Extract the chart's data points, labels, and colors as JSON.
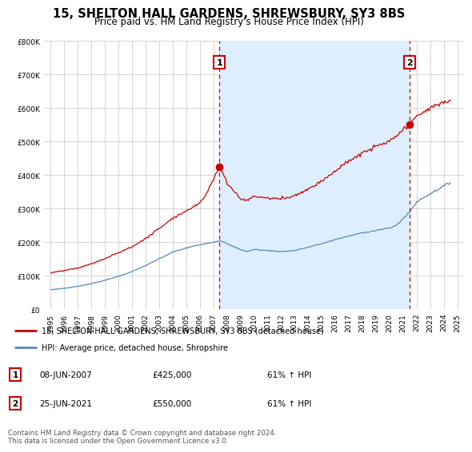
{
  "title": "15, SHELTON HALL GARDENS, SHREWSBURY, SY3 8BS",
  "subtitle": "Price paid vs. HM Land Registry's House Price Index (HPI)",
  "legend_line1": "15, SHELTON HALL GARDENS, SHREWSBURY, SY3 8BS (detached house)",
  "legend_line2": "HPI: Average price, detached house, Shropshire",
  "footnote": "Contains HM Land Registry data © Crown copyright and database right 2024.\nThis data is licensed under the Open Government Licence v3.0.",
  "sale1_date": "08-JUN-2007",
  "sale1_price": 425000,
  "sale1_label": "61% ↑ HPI",
  "sale2_date": "25-JUN-2021",
  "sale2_price": 550000,
  "sale2_label": "61% ↑ HPI",
  "sale1_year": 2007.44,
  "sale2_year": 2021.48,
  "red_color": "#cc0000",
  "blue_color": "#5588bb",
  "shade_color": "#ddeeff",
  "background_color": "#ffffff",
  "ylim": [
    0,
    800000
  ],
  "xlim_start": 1994.5,
  "xlim_end": 2025.5
}
